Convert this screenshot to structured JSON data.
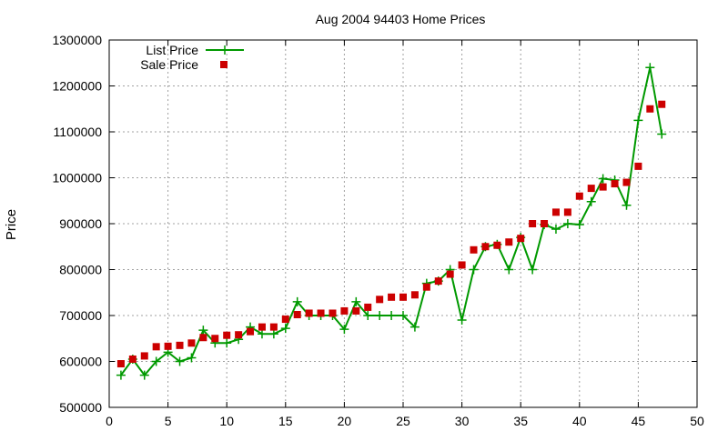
{
  "chart_data": {
    "type": "line",
    "title": "Aug 2004 94403 Home Prices",
    "xlabel": "",
    "ylabel": "Price",
    "xlim": [
      0,
      50
    ],
    "ylim": [
      500000,
      1300000
    ],
    "xticks": [
      0,
      5,
      10,
      15,
      20,
      25,
      30,
      35,
      40,
      45,
      50
    ],
    "yticks": [
      500000,
      600000,
      700000,
      800000,
      900000,
      1000000,
      1100000,
      1200000,
      1300000
    ],
    "xtick_labels": [
      "0",
      "5",
      "10",
      "15",
      "20",
      "25",
      "30",
      "35",
      "40",
      "45",
      "50"
    ],
    "ytick_labels": [
      "500000",
      "600000",
      "700000",
      "800000",
      "900000",
      "1000000",
      "1100000",
      "1200000",
      "1300000"
    ],
    "grid": true,
    "legend_position": "top-left",
    "x": [
      1,
      2,
      3,
      4,
      5,
      6,
      7,
      8,
      9,
      10,
      11,
      12,
      13,
      14,
      15,
      16,
      17,
      18,
      19,
      20,
      21,
      22,
      23,
      24,
      25,
      26,
      27,
      28,
      29,
      30,
      31,
      32,
      33,
      34,
      35,
      36,
      37,
      38,
      39,
      40,
      41,
      42,
      43,
      44,
      45,
      46,
      47
    ],
    "series": [
      {
        "name": "List Price",
        "style": "line-plus",
        "color": "#009900",
        "values": [
          570000,
          605000,
          570000,
          600000,
          620000,
          600000,
          608000,
          668000,
          640000,
          640000,
          648000,
          675000,
          660000,
          660000,
          672000,
          730000,
          700000,
          700000,
          700000,
          670000,
          730000,
          700000,
          700000,
          700000,
          700000,
          675000,
          770000,
          775000,
          800000,
          690000,
          800000,
          850000,
          855000,
          800000,
          870000,
          800000,
          898000,
          888000,
          900000,
          898000,
          948000,
          998000,
          995000,
          940000,
          1125000,
          1240000,
          1095000
        ]
      },
      {
        "name": "Sale Price",
        "style": "square-markers",
        "color": "#cc0000",
        "values": [
          595000,
          605000,
          612000,
          632000,
          633000,
          635000,
          640000,
          652000,
          650000,
          657000,
          658000,
          665000,
          675000,
          675000,
          692000,
          702000,
          705000,
          705000,
          705000,
          710000,
          710000,
          718000,
          735000,
          740000,
          740000,
          745000,
          762000,
          775000,
          790000,
          810000,
          843000,
          850000,
          853000,
          860000,
          868000,
          900000,
          900000,
          925000,
          925000,
          960000,
          977000,
          980000,
          987000,
          990000,
          1025000,
          1150000,
          1160000
        ]
      }
    ]
  }
}
